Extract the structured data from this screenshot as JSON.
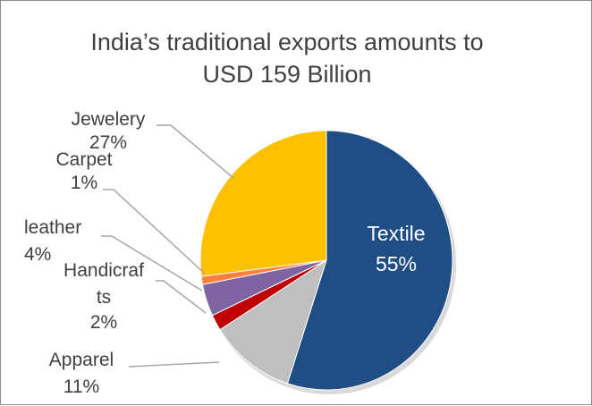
{
  "chart_data": {
    "type": "pie",
    "title_lines": [
      "India’s traditional exports amounts to",
      "USD 159 Billion"
    ],
    "slices": [
      {
        "label": "Textile",
        "value": 55,
        "display": "55%",
        "color": "#1f4e84",
        "inside": true
      },
      {
        "label": "Apparel",
        "value": 11,
        "display": "11%",
        "color": "#bfbfbf"
      },
      {
        "label": "Handicrafts",
        "label_lines": [
          "Handicraf",
          "ts"
        ],
        "value": 2,
        "display": "2%",
        "color": "#c00000"
      },
      {
        "label": "leather",
        "value": 4,
        "display": "4%",
        "color": "#8064a2"
      },
      {
        "label": "Carpet",
        "value": 1,
        "display": "1%",
        "color": "#ff7f3f"
      },
      {
        "label": "Jewelery",
        "value": 27,
        "display": "27%",
        "color": "#ffc000"
      }
    ]
  }
}
